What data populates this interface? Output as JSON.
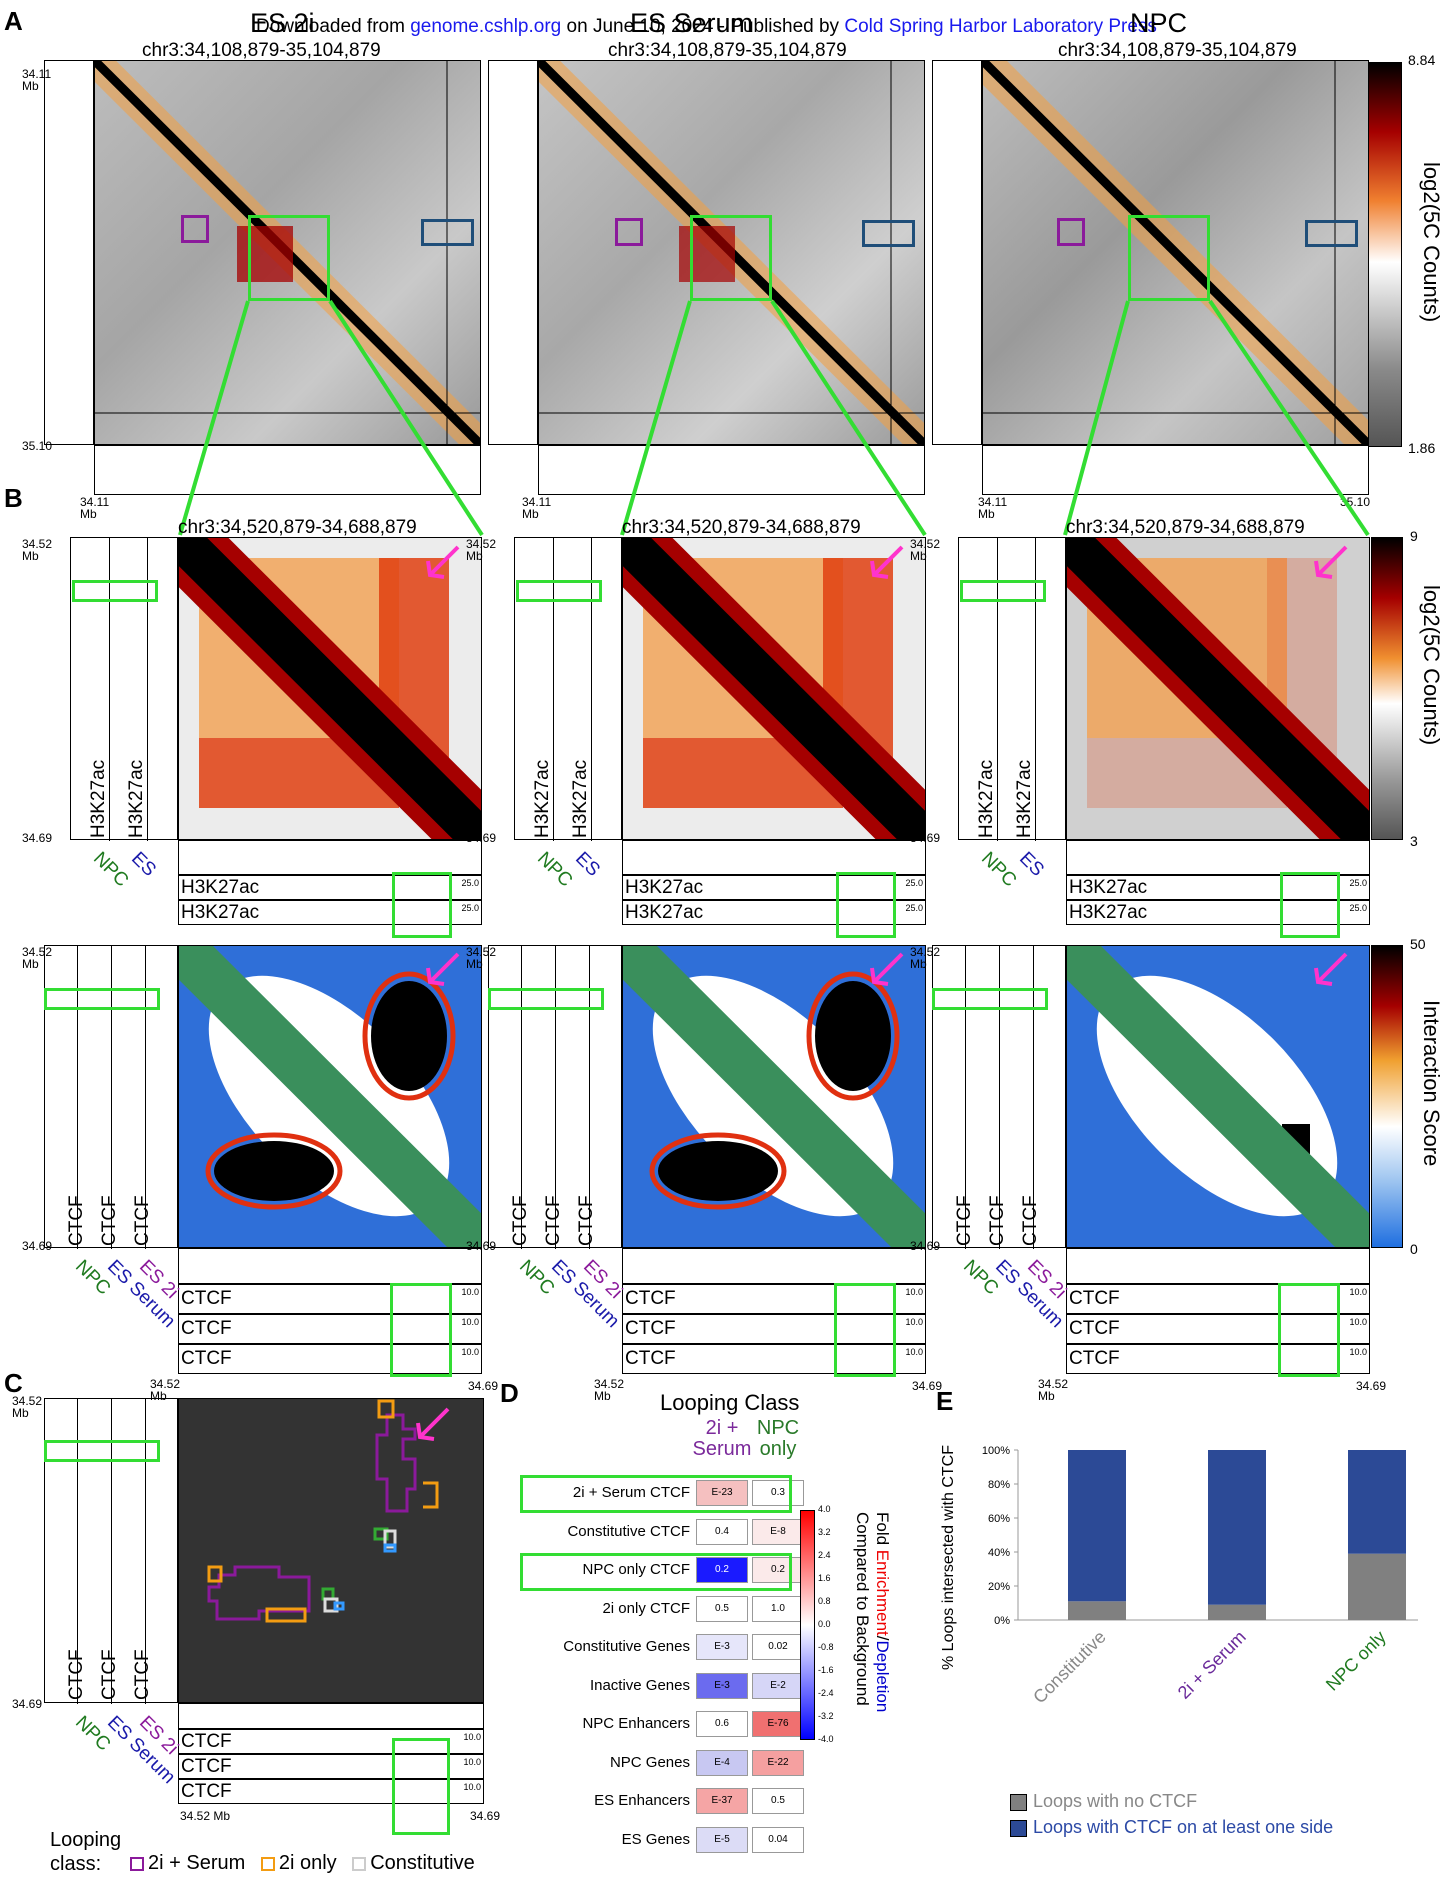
{
  "header": {
    "prefix": "Downloaded from ",
    "site": "genome.cshlp.org",
    "middle": " on June 10, 2024 - Published by ",
    "publisher": "Cold Spring Harbor Laboratory Press"
  },
  "panel_labels": [
    "A",
    "B",
    "C",
    "D",
    "E"
  ],
  "conditions": [
    "ES 2i",
    "ES Serum",
    "NPC"
  ],
  "region_A": "chr3:34,108,879-35,104,879",
  "region_B": "chr3:34,520,879-34,688,879",
  "axis_A": {
    "start": "34.11",
    "end": "35.10",
    "unit": "Mb"
  },
  "axis_B": {
    "start": "34.52",
    "end": "34.69",
    "unit": "Mb"
  },
  "colorbar_A": {
    "max": "8.84",
    "min": "1.86",
    "title": "log2(5C Counts)"
  },
  "colorbar_B1": {
    "max": "9",
    "min": "3",
    "title": "log2(5C Counts)"
  },
  "colorbar_B2": {
    "max": "50",
    "min": "0",
    "title": "Interaction Score"
  },
  "tracks": {
    "h3k27ac": "H3K27ac",
    "ctcf": "CTCF",
    "lim_h3": "25.0",
    "lim_ctcf": "10.0",
    "labels_h3": [
      "ES",
      "NPC"
    ],
    "labels_ctcf": [
      "ES 2i",
      "ES Serum",
      "NPC"
    ]
  },
  "panel_C": {
    "legend_title": "Looping\nclass:",
    "legend_items": [
      {
        "label": "2i + Serum",
        "color": "#8b1a9b"
      },
      {
        "label": "2i only",
        "color": "#f39c12"
      },
      {
        "label": "Constitutive",
        "color": "#cccccc"
      }
    ],
    "axis_start": "34.52 Mb",
    "axis_end": "34.69"
  },
  "panel_D": {
    "title": "Looping Class",
    "col_headers": [
      {
        "line1": "2i +",
        "line2": "Serum",
        "color": "#7b2a9b"
      },
      {
        "line1": "NPC",
        "line2": "only",
        "color": "#2a7a2a"
      }
    ],
    "rows": [
      {
        "label": "2i + Serum CTCF",
        "v1": "E-23",
        "v2": "0.3",
        "c1": "#f5c0c0",
        "c2": "#ffffff"
      },
      {
        "label": "Constitutive CTCF",
        "v1": "0.4",
        "v2": "E-8",
        "c1": "#ffffff",
        "c2": "#fbeaea"
      },
      {
        "label": "NPC only CTCF",
        "v1": "0.2",
        "v2": "0.2",
        "c1": "#1a1aff",
        "c2": "#fbeaea"
      },
      {
        "label": "2i only CTCF",
        "v1": "0.5",
        "v2": "1.0",
        "c1": "#ffffff",
        "c2": "#ffffff"
      },
      {
        "label": "Constitutive Genes",
        "v1": "E-3",
        "v2": "0.02",
        "c1": "#e6e6fa",
        "c2": "#ffffff"
      },
      {
        "label": "Inactive Genes",
        "v1": "E-3",
        "v2": "E-2",
        "c1": "#6b6bef",
        "c2": "#d6d6f7"
      },
      {
        "label": "NPC Enhancers",
        "v1": "0.6",
        "v2": "E-76",
        "c1": "#ffffff",
        "c2": "#f07070"
      },
      {
        "label": "NPC Genes",
        "v1": "E-4",
        "v2": "E-22",
        "c1": "#c8c8f2",
        "c2": "#f5a0a0"
      },
      {
        "label": "ES Enhancers",
        "v1": "E-37",
        "v2": "0.5",
        "c1": "#f5a5a5",
        "c2": "#ffffff"
      },
      {
        "label": "ES Genes",
        "v1": "E-5",
        "v2": "0.04",
        "c1": "#dcdcf6",
        "c2": "#ffffff"
      }
    ],
    "colorbar_ticks": [
      "4.0",
      "3.2",
      "2.4",
      "1.6",
      "0.8",
      "0.0",
      "-0.8",
      "-1.6",
      "-2.4",
      "-3.2",
      "-4.0"
    ],
    "colorbar_title_parts": [
      "Fold ",
      "Enrichment",
      "/",
      "Depletion"
    ],
    "colorbar_title_line2": "Compared to Background"
  },
  "chart_data": {
    "type": "bar",
    "title": "",
    "ylabel": "% Loops intersected with CTCF",
    "categories": [
      "Constitutive",
      "2i + Serum",
      "NPC only"
    ],
    "category_colors": [
      "#888888",
      "#6a2a9a",
      "#1f7a1f"
    ],
    "yticks": [
      "0%",
      "20%",
      "40%",
      "60%",
      "80%",
      "100%"
    ],
    "ylim": [
      0,
      100
    ],
    "series": [
      {
        "name": "Loops with no CTCF",
        "values": [
          11,
          9,
          39
        ],
        "color": "#808080"
      },
      {
        "name": "Loops with CTCF on at least one side",
        "values": [
          89,
          91,
          61
        ],
        "color": "#2c4a96"
      }
    ]
  }
}
